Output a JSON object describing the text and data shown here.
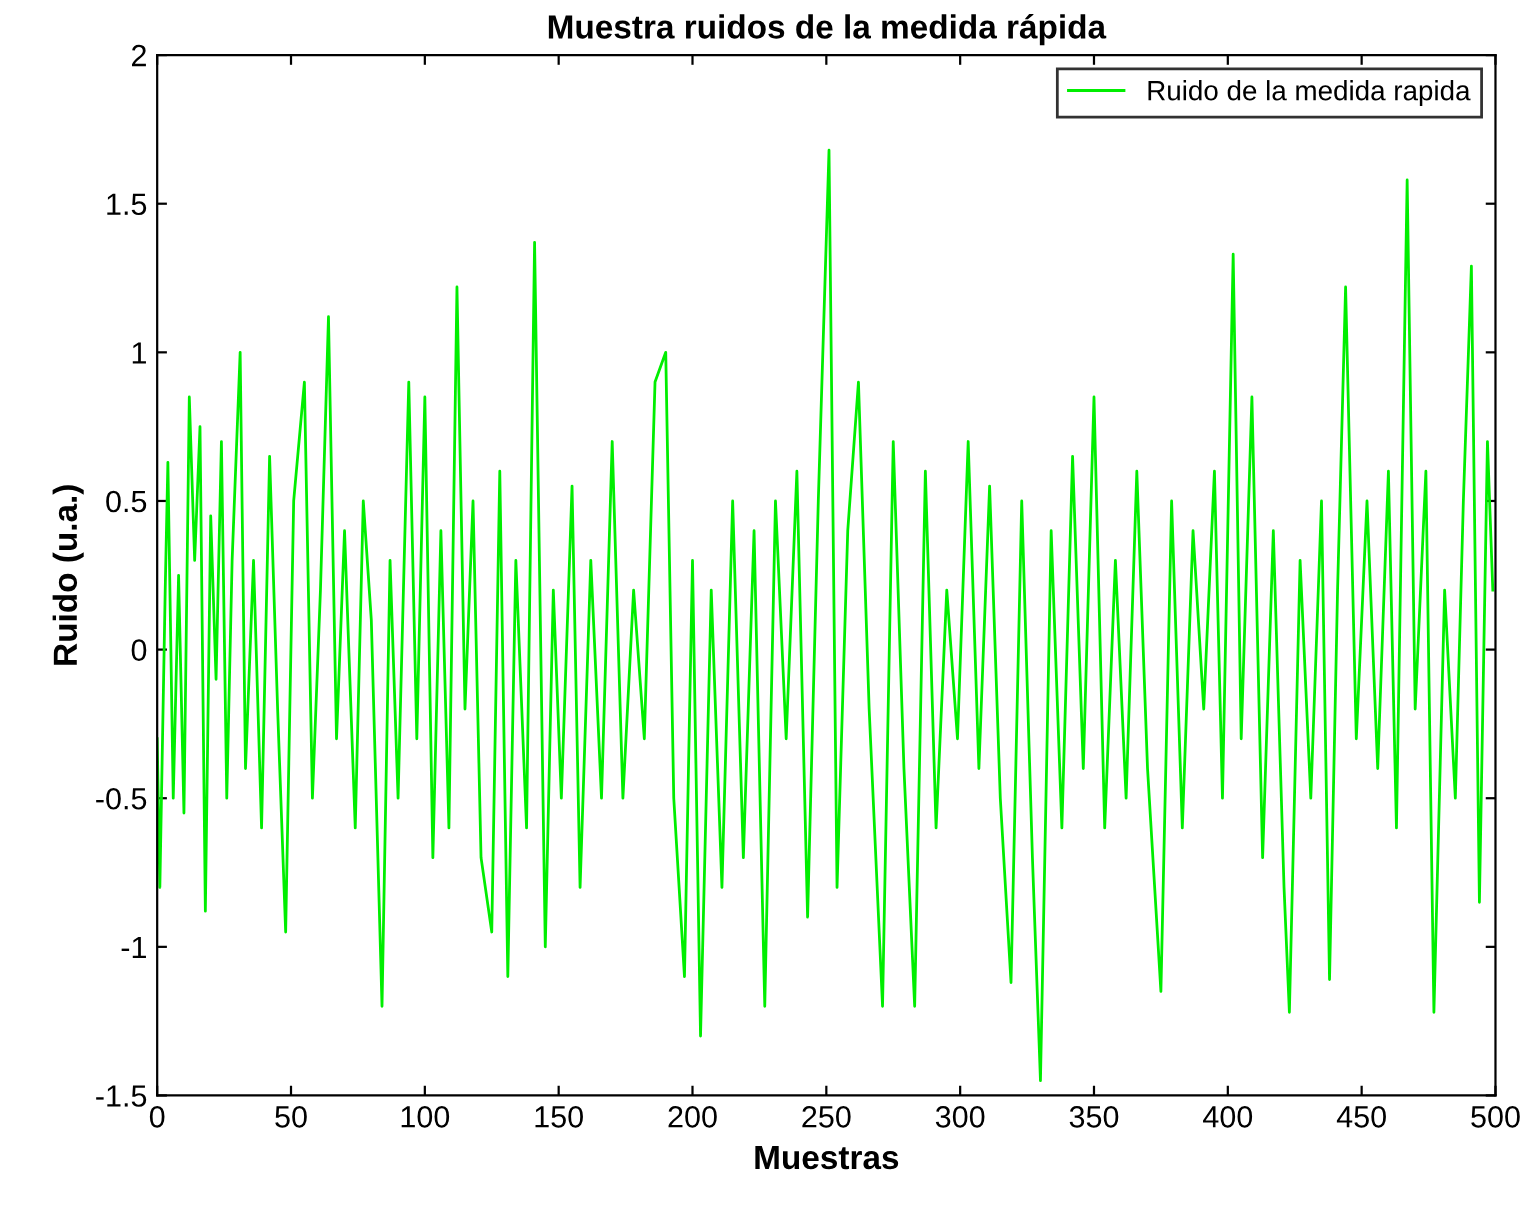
{
  "chart_data": {
    "type": "line",
    "title": "Muestra ruidos de la medida rápida",
    "xlabel": "Muestras",
    "ylabel": "Ruido (u.a.)",
    "series": [
      {
        "name": "Ruido de la medida rapida",
        "color": "#00ee00",
        "x": [
          0,
          1,
          3,
          4,
          6,
          8,
          10,
          12,
          14,
          16,
          18,
          20,
          22,
          24,
          26,
          28,
          31,
          33,
          36,
          39,
          42,
          45,
          48,
          51,
          55,
          58,
          61,
          64,
          67,
          70,
          74,
          77,
          80,
          84,
          87,
          90,
          94,
          97,
          100,
          103,
          106,
          109,
          112,
          115,
          118,
          121,
          125,
          128,
          131,
          134,
          138,
          141,
          145,
          148,
          151,
          155,
          158,
          162,
          166,
          170,
          174,
          178,
          182,
          186,
          190,
          193,
          197,
          200,
          203,
          207,
          211,
          215,
          219,
          223,
          227,
          231,
          235,
          239,
          243,
          247,
          251,
          254,
          258,
          262,
          266,
          271,
          275,
          279,
          283,
          287,
          291,
          295,
          299,
          303,
          307,
          311,
          315,
          319,
          323,
          327,
          330,
          334,
          338,
          342,
          346,
          350,
          354,
          358,
          362,
          366,
          370,
          375,
          379,
          383,
          387,
          391,
          395,
          398,
          402,
          405,
          409,
          413,
          417,
          421,
          423,
          427,
          431,
          435,
          438,
          441,
          444,
          448,
          452,
          456,
          460,
          463,
          467,
          470,
          474,
          477,
          481,
          485,
          488,
          491,
          494,
          497,
          499
        ],
        "values": [
          -0.3,
          -0.8,
          0.2,
          0.63,
          -0.5,
          0.25,
          -0.55,
          0.85,
          0.3,
          0.75,
          -0.88,
          0.45,
          -0.1,
          0.7,
          -0.5,
          0.3,
          1.0,
          -0.4,
          0.3,
          -0.6,
          0.65,
          -0.2,
          -0.95,
          0.5,
          0.9,
          -0.5,
          0.2,
          1.12,
          -0.3,
          0.4,
          -0.6,
          0.5,
          0.1,
          -1.2,
          0.3,
          -0.5,
          0.9,
          -0.3,
          0.85,
          -0.7,
          0.4,
          -0.6,
          1.22,
          -0.2,
          0.5,
          -0.7,
          -0.95,
          0.6,
          -1.1,
          0.3,
          -0.6,
          1.37,
          -1.0,
          0.2,
          -0.5,
          0.55,
          -0.8,
          0.3,
          -0.5,
          0.7,
          -0.5,
          0.2,
          -0.3,
          0.9,
          1.0,
          -0.5,
          -1.1,
          0.3,
          -1.3,
          0.2,
          -0.8,
          0.5,
          -0.7,
          0.4,
          -1.2,
          0.5,
          -0.3,
          0.6,
          -0.9,
          0.5,
          1.68,
          -0.8,
          0.4,
          0.9,
          -0.2,
          -1.2,
          0.7,
          -0.4,
          -1.2,
          0.6,
          -0.6,
          0.2,
          -0.3,
          0.7,
          -0.4,
          0.55,
          -0.5,
          -1.12,
          0.5,
          -0.7,
          -1.45,
          0.4,
          -0.6,
          0.65,
          -0.4,
          0.85,
          -0.6,
          0.3,
          -0.5,
          0.6,
          -0.4,
          -1.15,
          0.5,
          -0.6,
          0.4,
          -0.2,
          0.6,
          -0.5,
          1.33,
          -0.3,
          0.85,
          -0.7,
          0.4,
          -0.8,
          -1.22,
          0.3,
          -0.5,
          0.5,
          -1.11,
          0.2,
          1.22,
          -0.3,
          0.5,
          -0.4,
          0.6,
          -0.6,
          1.58,
          -0.2,
          0.6,
          -1.22,
          0.2,
          -0.5,
          0.5,
          1.29,
          -0.85,
          0.7,
          0.2
        ]
      }
    ],
    "xlim": [
      0,
      500
    ],
    "ylim": [
      -1.5,
      2
    ],
    "xticks": [
      0,
      50,
      100,
      150,
      200,
      250,
      300,
      350,
      400,
      450,
      500
    ],
    "yticks": [
      -1.5,
      -1,
      -0.5,
      0,
      0.5,
      1,
      1.5,
      2
    ],
    "legend": "top right",
    "grid": false
  }
}
